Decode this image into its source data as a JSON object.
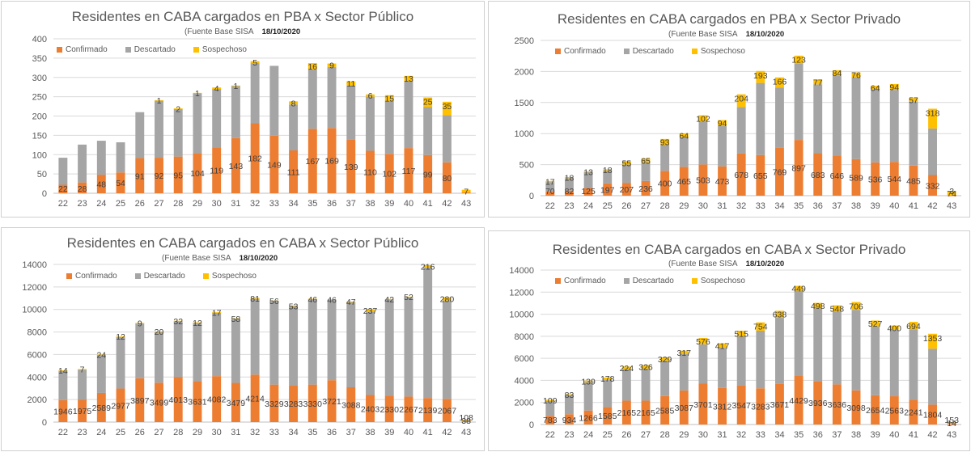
{
  "colors": {
    "confirmado": "#ED7D31",
    "descartado": "#A5A5A5",
    "sospechoso": "#FFC000"
  },
  "legend": {
    "confirmado": "Confirmado",
    "descartado": "Descartado",
    "sospechoso": "Sospechoso"
  },
  "chart_data": [
    {
      "type": "bar",
      "title": "Residentes en CABA cargados en PBA x Sector Público",
      "subtitle": "(Fuente  Base SISA",
      "date": "18/10/2020",
      "categories": [
        "22",
        "23",
        "24",
        "25",
        "26",
        "27",
        "28",
        "29",
        "30",
        "31",
        "32",
        "33",
        "34",
        "35",
        "36",
        "37",
        "38",
        "39",
        "40",
        "41",
        "42",
        "43"
      ],
      "ylim": [
        0,
        400
      ],
      "yticks": [
        0,
        50,
        100,
        150,
        200,
        250,
        300,
        350,
        400
      ],
      "series": [
        {
          "name": "Confirmado",
          "values": [
            22,
            28,
            48,
            54,
            91,
            92,
            95,
            104,
            119,
            143,
            182,
            149,
            111,
            167,
            169,
            139,
            110,
            102,
            117,
            99,
            80,
            2
          ]
        },
        {
          "name": "Descartado",
          "values": [
            70,
            98,
            88,
            78,
            119,
            148,
            123,
            155,
            151,
            135,
            155,
            181,
            119,
            154,
            158,
            140,
            140,
            137,
            174,
            124,
            122,
            0
          ]
        },
        {
          "name": "Sospechoso",
          "values": [
            null,
            null,
            null,
            null,
            null,
            1,
            2,
            1,
            4,
            1,
            5,
            null,
            8,
            16,
            9,
            11,
            6,
            15,
            13,
            25,
            35,
            7
          ]
        }
      ],
      "labels": [
        {
          "series": "Confirmado",
          "values": [
            22,
            28,
            48,
            54,
            91,
            92,
            95,
            104,
            119,
            143,
            182,
            149,
            111,
            167,
            169,
            139,
            110,
            102,
            117,
            99,
            80,
            null
          ]
        },
        {
          "series": "Sospechoso",
          "values": [
            null,
            null,
            null,
            null,
            null,
            1,
            2,
            1,
            4,
            1,
            5,
            null,
            8,
            16,
            9,
            11,
            6,
            15,
            13,
            25,
            35,
            7
          ]
        }
      ]
    },
    {
      "type": "bar",
      "title": "Residentes en CABA cargados en PBA x Sector Privado",
      "subtitle": "(Fuente  Base SISA",
      "date": "18/10/2020",
      "categories": [
        "22",
        "23",
        "24",
        "25",
        "26",
        "27",
        "28",
        "29",
        "30",
        "31",
        "32",
        "33",
        "34",
        "35",
        "36",
        "37",
        "38",
        "39",
        "40",
        "41",
        "42",
        "43"
      ],
      "ylim": [
        0,
        2500
      ],
      "yticks": [
        0,
        500,
        1000,
        1500,
        2000,
        2500
      ],
      "series": [
        {
          "name": "Confirmado",
          "values": [
            70,
            82,
            125,
            197,
            207,
            236,
            400,
            465,
            503,
            473,
            678,
            655,
            769,
            897,
            683,
            646,
            589,
            536,
            544,
            485,
            332,
            3
          ]
        },
        {
          "name": "Descartado",
          "values": [
            150,
            200,
            255,
            210,
            295,
            300,
            420,
            475,
            690,
            650,
            750,
            1160,
            970,
            1235,
            1110,
            1290,
            1320,
            1170,
            1160,
            1030,
            750,
            0
          ]
        },
        {
          "name": "Sospechoso",
          "values": [
            17,
            18,
            13,
            18,
            55,
            65,
            93,
            64,
            102,
            94,
            204,
            193,
            166,
            123,
            77,
            84,
            76,
            64,
            94,
            57,
            318,
            74
          ]
        }
      ],
      "labels": [
        {
          "series": "Confirmado",
          "values": [
            70,
            82,
            125,
            197,
            207,
            236,
            400,
            465,
            503,
            473,
            678,
            655,
            769,
            897,
            683,
            646,
            589,
            536,
            544,
            485,
            332,
            3
          ]
        },
        {
          "series": "Sospechoso",
          "values": [
            17,
            18,
            13,
            18,
            55,
            65,
            93,
            64,
            102,
            94,
            204,
            193,
            166,
            123,
            77,
            84,
            76,
            64,
            94,
            57,
            318,
            74
          ]
        }
      ]
    },
    {
      "type": "bar",
      "title": "Residentes en CABA cargados en CABA x Sector Público",
      "subtitle": "(Fuente  Base SISA",
      "date": "18/10/2020",
      "categories": [
        "22",
        "23",
        "24",
        "25",
        "26",
        "27",
        "28",
        "29",
        "30",
        "31",
        "32",
        "33",
        "34",
        "35",
        "36",
        "37",
        "38",
        "39",
        "40",
        "41",
        "42",
        "43"
      ],
      "ylim": [
        0,
        14000
      ],
      "yticks": [
        0,
        2000,
        4000,
        6000,
        8000,
        10000,
        12000,
        14000
      ],
      "series": [
        {
          "name": "Confirmado",
          "values": [
            1946,
            1975,
            2589,
            2977,
            3897,
            3499,
            4013,
            3631,
            4082,
            3479,
            4214,
            3329,
            3283,
            3330,
            3721,
            3088,
            2403,
            2330,
            2267,
            2139,
            2067,
            108
          ]
        },
        {
          "name": "Descartado",
          "values": [
            2640,
            2720,
            3380,
            4610,
            4890,
            4530,
            4950,
            5210,
            5650,
            5670,
            6740,
            7400,
            7010,
            7570,
            7130,
            7570,
            7390,
            8560,
            8820,
            11580,
            8730,
            0
          ]
        },
        {
          "name": "Sospechoso",
          "values": [
            14,
            7,
            24,
            12,
            9,
            20,
            32,
            12,
            17,
            58,
            81,
            56,
            53,
            46,
            46,
            47,
            237,
            42,
            52,
            216,
            280,
            38
          ]
        }
      ],
      "labels": [
        {
          "series": "Confirmado",
          "values": [
            1946,
            1975,
            2589,
            2977,
            3897,
            3499,
            4013,
            3631,
            4082,
            3479,
            4214,
            3329,
            3283,
            3330,
            3721,
            3088,
            2403,
            2330,
            2267,
            2139,
            2067,
            108
          ]
        },
        {
          "series": "Sospechoso",
          "values": [
            14,
            7,
            24,
            12,
            9,
            20,
            32,
            12,
            17,
            58,
            81,
            56,
            53,
            46,
            46,
            47,
            237,
            42,
            52,
            216,
            280,
            38
          ]
        }
      ]
    },
    {
      "type": "bar",
      "title": "Residentes en CABA cargados en CABA x Sector Privado",
      "subtitle": "(Fuente  Base SISA",
      "date": "18/10/2020",
      "categories": [
        "22",
        "23",
        "24",
        "25",
        "26",
        "27",
        "28",
        "29",
        "30",
        "31",
        "32",
        "33",
        "34",
        "35",
        "36",
        "37",
        "38",
        "39",
        "40",
        "41",
        "42",
        "43"
      ],
      "ylim": [
        0,
        14000
      ],
      "yticks": [
        0,
        2000,
        4000,
        6000,
        8000,
        10000,
        12000,
        14000
      ],
      "series": [
        {
          "name": "Confirmado",
          "values": [
            783,
            934,
            1266,
            1585,
            2165,
            2165,
            2585,
            3087,
            3701,
            3312,
            3547,
            3283,
            3671,
            4429,
            3936,
            3636,
            3098,
            2654,
            2563,
            2241,
            1804,
            153
          ]
        },
        {
          "name": "Descartado",
          "values": [
            1350,
            1720,
            2570,
            2500,
            2860,
            2900,
            3180,
            3290,
            3570,
            3640,
            4440,
            5220,
            6000,
            7690,
            6590,
            6620,
            7300,
            6240,
            6010,
            6370,
            5070,
            0
          ]
        },
        {
          "name": "Sospechoso",
          "values": [
            109,
            83,
            139,
            178,
            224,
            326,
            329,
            317,
            576,
            417,
            515,
            754,
            638,
            449,
            498,
            548,
            706,
            527,
            400,
            694,
            1353,
            14
          ]
        }
      ],
      "labels": [
        {
          "series": "Confirmado",
          "values": [
            783,
            934,
            1266,
            1585,
            2165,
            2165,
            2585,
            3087,
            3701,
            3312,
            3547,
            3283,
            3671,
            4429,
            3936,
            3636,
            3098,
            2654,
            2563,
            2241,
            1804,
            153
          ]
        },
        {
          "series": "Sospechoso",
          "values": [
            109,
            83,
            139,
            178,
            224,
            326,
            329,
            317,
            576,
            417,
            515,
            754,
            638,
            449,
            498,
            548,
            706,
            527,
            400,
            694,
            1353,
            14
          ]
        }
      ]
    }
  ]
}
